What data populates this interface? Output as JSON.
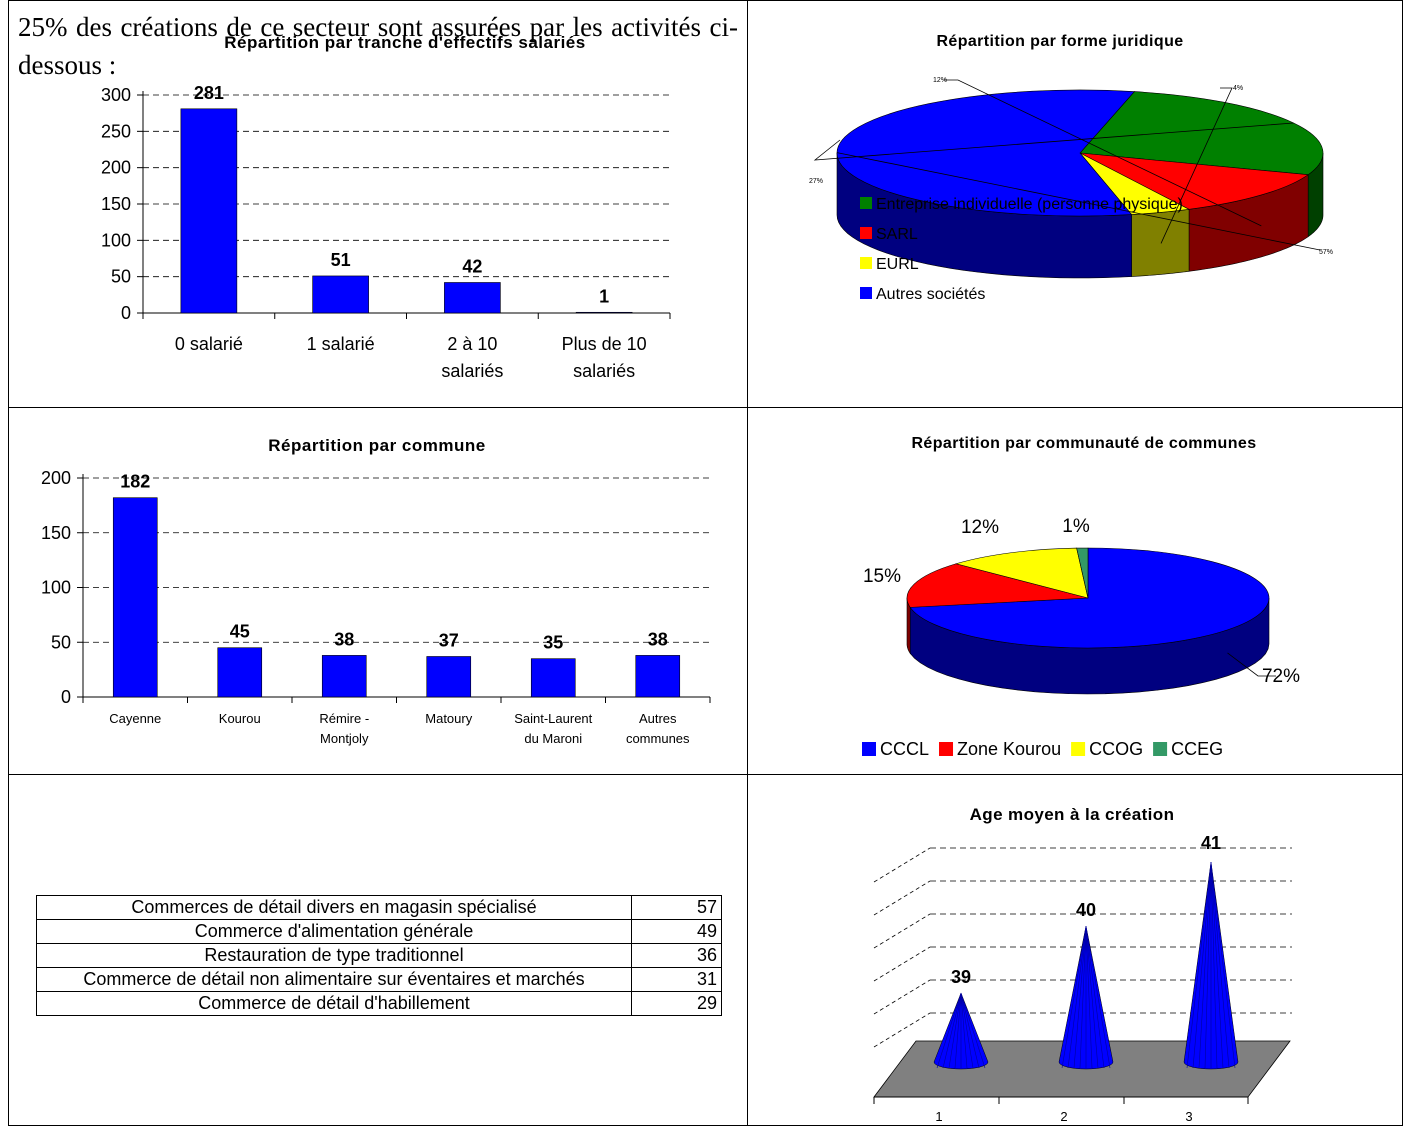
{
  "chart_data": [
    {
      "id": "effectifs",
      "type": "bar",
      "title": "Répartition par tranche d'effectifs salariés",
      "categories": [
        "0 salarié",
        "1 salarié",
        "2 à 10 salariés",
        "Plus de 10 salariés"
      ],
      "category_lines": [
        [
          "0 salarié"
        ],
        [
          "1 salarié"
        ],
        [
          "2 à 10",
          "salariés"
        ],
        [
          "Plus de 10",
          "salariés"
        ]
      ],
      "values": [
        281,
        51,
        42,
        1
      ],
      "ylim": [
        0,
        300
      ],
      "yticks": [
        0,
        50,
        100,
        150,
        200,
        250,
        300
      ],
      "grid": true,
      "bar_color": "#0000ff"
    },
    {
      "id": "forme",
      "type": "pie",
      "title": "Répartition par forme juridique",
      "labels": [
        "Entreprise individuelle (personne physique)",
        "SARL",
        "EURL",
        "Autres sociétés"
      ],
      "values": [
        27,
        12,
        4,
        57
      ],
      "value_labels": [
        "27%",
        "12%",
        "4%",
        "57%"
      ],
      "colors": [
        "#008000",
        "#ff0000",
        "#ffff00",
        "#0000ff"
      ],
      "legend": "overlapping-bottom-left"
    },
    {
      "id": "commune",
      "type": "bar",
      "title": "Répartition par commune",
      "categories": [
        "Cayenne",
        "Kourou",
        "Rémire-Montjoly",
        "Matoury",
        "Saint-Laurent du Maroni",
        "Autres communes"
      ],
      "category_lines": [
        [
          "Cayenne"
        ],
        [
          "Kourou"
        ],
        [
          "Rémire -",
          "Montjoly"
        ],
        [
          "Matoury"
        ],
        [
          "Saint-Laurent",
          "du Maroni"
        ],
        [
          "Autres",
          "communes"
        ]
      ],
      "values": [
        182,
        45,
        38,
        37,
        35,
        38
      ],
      "ylim": [
        0,
        200
      ],
      "yticks": [
        0,
        50,
        100,
        150,
        200
      ],
      "grid": true,
      "bar_color": "#0000ff"
    },
    {
      "id": "communaute",
      "type": "pie",
      "title": "Répartition par communauté de communes",
      "labels": [
        "CCCL",
        "Zone Kourou",
        "CCOG",
        "CCEG"
      ],
      "values": [
        72,
        15,
        12,
        1
      ],
      "value_labels": [
        "72%",
        "15%",
        "12%",
        "1%"
      ],
      "colors": [
        "#0000ff",
        "#ff0000",
        "#ffff00",
        "#339966"
      ],
      "legend": "bottom"
    },
    {
      "id": "age",
      "type": "bar",
      "title": "Age moyen à la création",
      "categories": [
        "1",
        "2",
        "3"
      ],
      "values": [
        39,
        40,
        41
      ],
      "bar_color": "#0000ff",
      "floor_color": "#808080",
      "grid": true
    }
  ],
  "text": {
    "intro": "25% des créations de ce secteur sont assurées par les activités ci-dessous :"
  },
  "activities": [
    {
      "label": "Commerces de détail divers en magasin spécialisé",
      "value": "57"
    },
    {
      "label": "Commerce d'alimentation générale",
      "value": "49"
    },
    {
      "label": "Restauration de type traditionnel",
      "value": "36"
    },
    {
      "label": "Commerce de détail non alimentaire sur éventaires et marchés",
      "value": "31"
    },
    {
      "label": "Commerce de détail d'habillement",
      "value": "29"
    }
  ]
}
